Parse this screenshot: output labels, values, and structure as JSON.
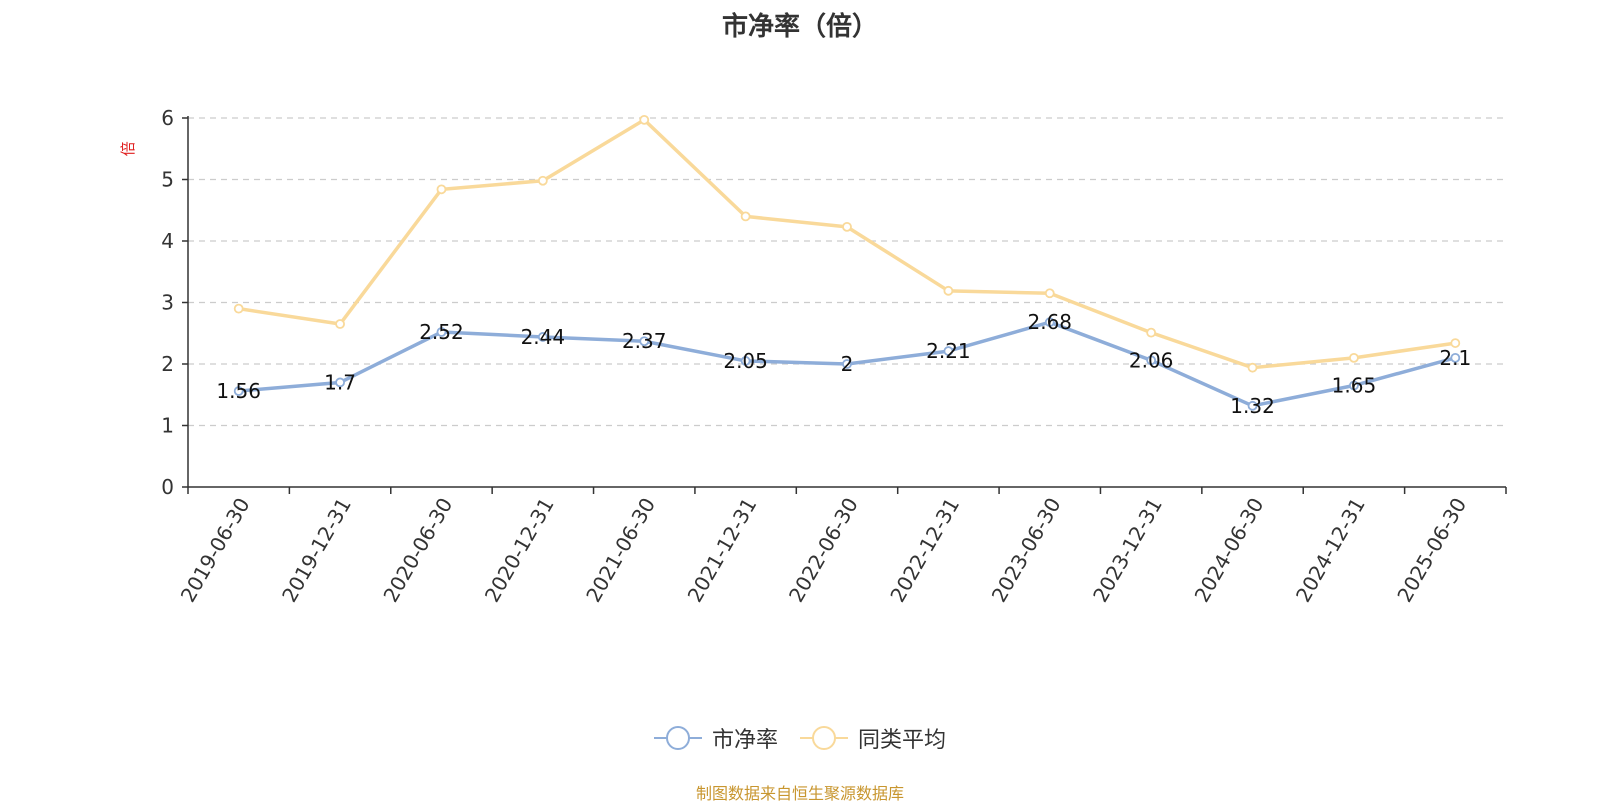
{
  "chart_data": {
    "type": "line",
    "title": "市净率（倍）",
    "ylabel": "倍",
    "xlabel": "",
    "ylim": [
      0,
      6
    ],
    "yticks": [
      0,
      1,
      2,
      3,
      4,
      5,
      6
    ],
    "grid": true,
    "legend_position": "bottom",
    "categories": [
      "2019-06-30",
      "2019-12-31",
      "2020-06-30",
      "2020-12-31",
      "2021-06-30",
      "2021-12-31",
      "2022-06-30",
      "2022-12-31",
      "2023-06-30",
      "2023-12-31",
      "2024-06-30",
      "2024-12-31",
      "2025-06-30"
    ],
    "series": [
      {
        "name": "市净率",
        "color": "#8eadd9",
        "values": [
          1.56,
          1.7,
          2.52,
          2.44,
          2.37,
          2.05,
          2,
          2.21,
          2.68,
          2.06,
          1.32,
          1.65,
          2.1
        ],
        "labels": [
          "1.56",
          "1.7",
          "2.52",
          "2.44",
          "2.37",
          "2.05",
          "2",
          "2.21",
          "2.68",
          "2.06",
          "1.32",
          "1.65",
          "2.1"
        ]
      },
      {
        "name": "同类平均",
        "color": "#f9d99a",
        "values": [
          2.9,
          2.65,
          4.84,
          4.98,
          5.97,
          4.4,
          4.23,
          3.19,
          3.15,
          2.51,
          1.94,
          2.1,
          2.34
        ]
      }
    ]
  },
  "source_note": "制图数据来自恒生聚源数据库",
  "colors": {
    "axis": "#333333",
    "grid": "#cccccc",
    "ylabel": "#e02020",
    "text": "#333333"
  }
}
